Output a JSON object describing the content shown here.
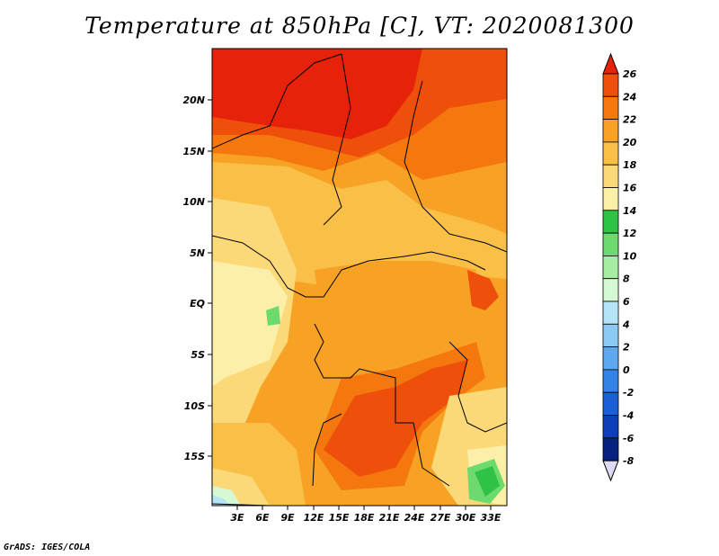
{
  "title": "Temperature at 850hPa [C], VT: 2020081300",
  "credit": "GrADS: IGES/COLA",
  "lat_labels": [
    "20N",
    "15N",
    "10N",
    "5N",
    "EQ",
    "5S",
    "10S",
    "15S"
  ],
  "lon_labels": [
    "3E",
    "6E",
    "9E",
    "12E",
    "15E",
    "18E",
    "21E",
    "24E",
    "27E",
    "30E",
    "33E"
  ],
  "colorbar": {
    "labels": [
      "26",
      "24",
      "22",
      "20",
      "18",
      "16",
      "14",
      "12",
      "10",
      "8",
      "6",
      "4",
      "2",
      "0",
      "-2",
      "-4",
      "-6",
      "-8"
    ],
    "colors": [
      "#e6220a",
      "#ee4f0b",
      "#f4780e",
      "#f7a125",
      "#f9bf47",
      "#fbd978",
      "#fbefaa",
      "#2ec246",
      "#6dda70",
      "#a6eda1",
      "#d6f8d2",
      "#b5e3f8",
      "#8ccaf6",
      "#5ea8f0",
      "#3382e6",
      "#1a5fd6",
      "#0c3fb8",
      "#06227e",
      "#dcd9f4"
    ]
  }
}
